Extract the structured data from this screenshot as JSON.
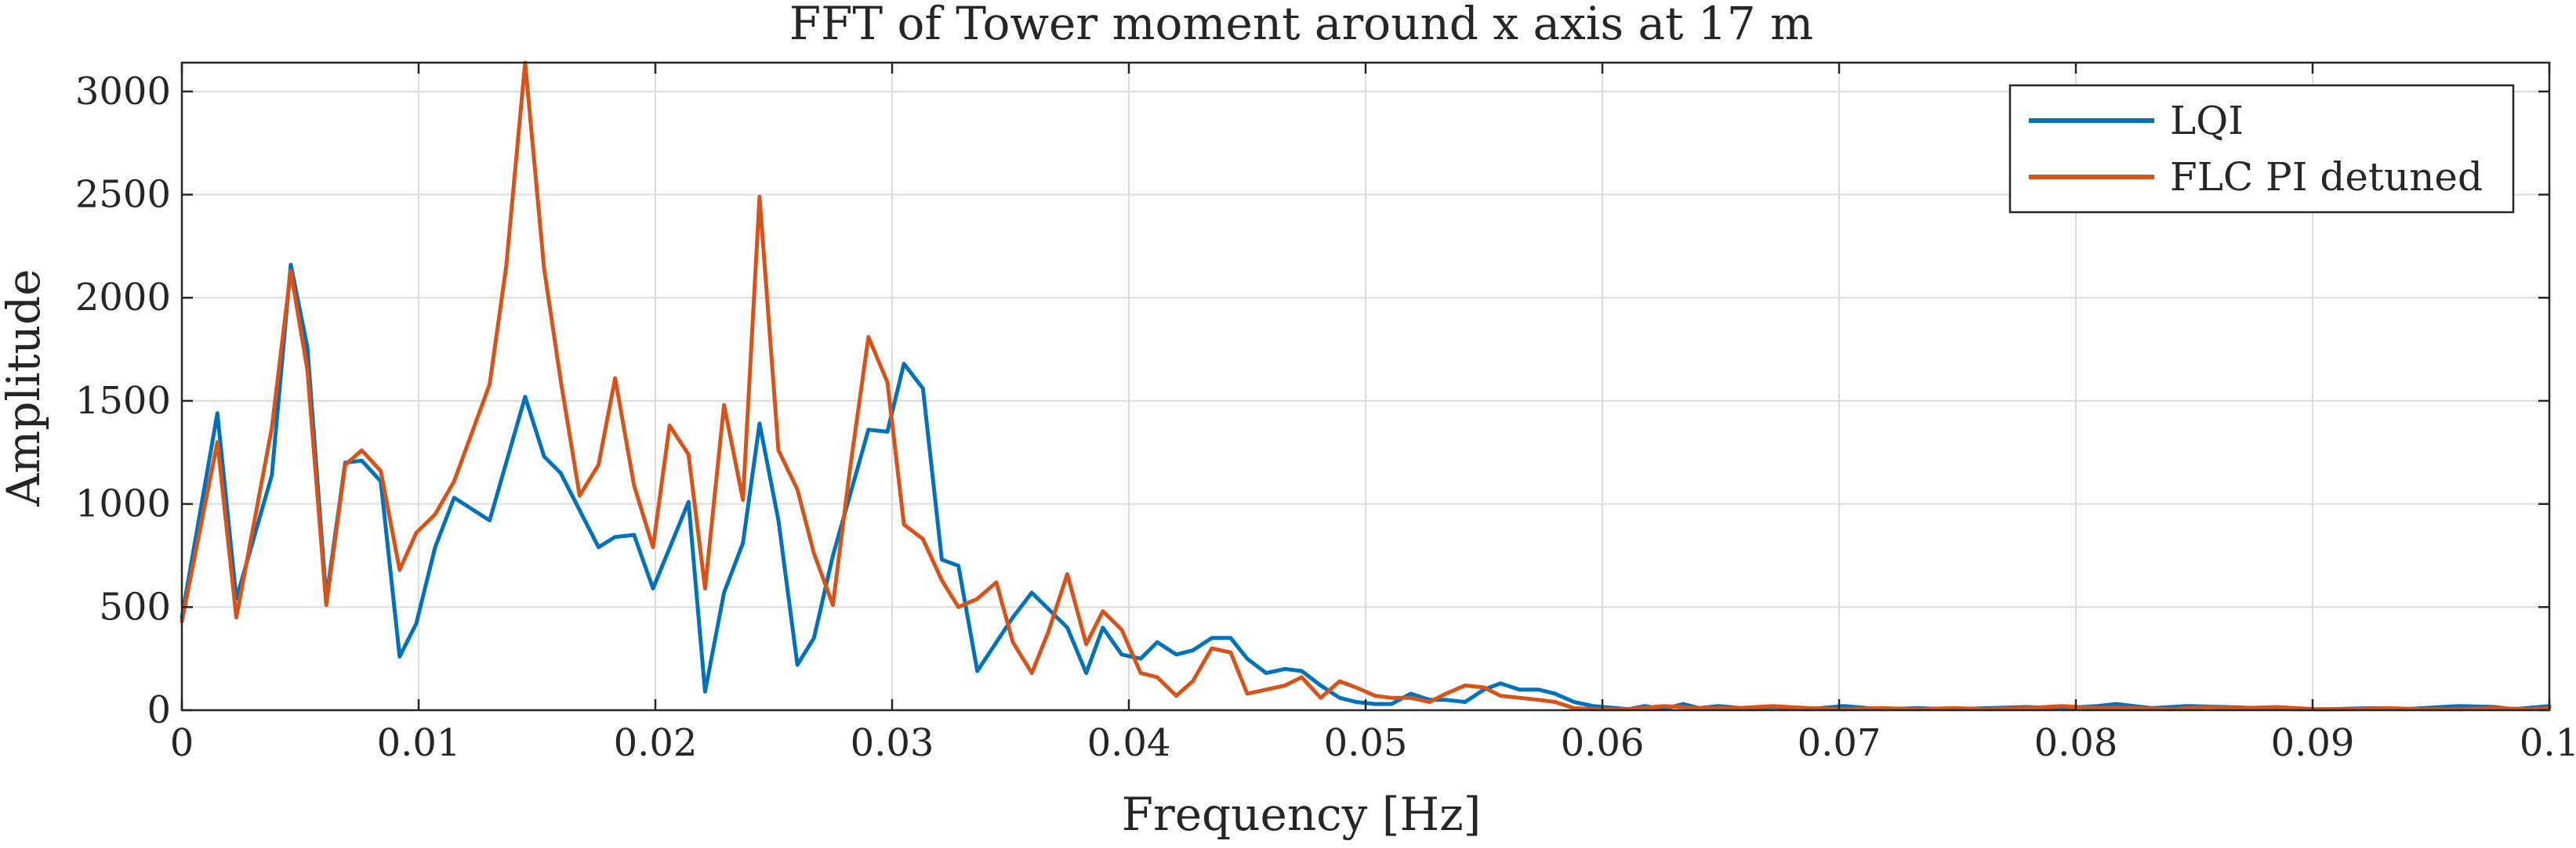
{
  "chart_data": {
    "type": "line",
    "title": "FFT of Tower moment around x axis at 17 m",
    "xlabel": "Frequency [Hz]",
    "ylabel": "Amplitude",
    "xlim": [
      0,
      0.1
    ],
    "ylim": [
      0,
      3140
    ],
    "xticks": [
      0,
      0.01,
      0.02,
      0.03,
      0.04,
      0.05,
      0.06,
      0.07,
      0.08,
      0.09,
      0.1
    ],
    "xtick_labels": [
      "0",
      "0.01",
      "0.02",
      "0.03",
      "0.04",
      "0.05",
      "0.06",
      "0.07",
      "0.08",
      "0.09",
      "0.1"
    ],
    "yticks": [
      0,
      500,
      1000,
      1500,
      2000,
      2500,
      3000
    ],
    "ytick_labels": [
      "0",
      "500",
      "1000",
      "1500",
      "2000",
      "2500",
      "3000"
    ],
    "grid": true,
    "legend_position": "top-right",
    "colors": {
      "LQI": "#0072BD",
      "FLC PI detuned": "#D95319"
    },
    "series": [
      {
        "name": "LQI",
        "color": "#0072BD",
        "x": [
          0,
          0.0015,
          0.0023,
          0.0038,
          0.0046,
          0.0053,
          0.0061,
          0.0069,
          0.0076,
          0.0084,
          0.0092,
          0.0099,
          0.0107,
          0.0115,
          0.013,
          0.0145,
          0.0153,
          0.016,
          0.0176,
          0.0183,
          0.0191,
          0.0199,
          0.0214,
          0.0221,
          0.0229,
          0.0237,
          0.0244,
          0.0252,
          0.026,
          0.0267,
          0.0275,
          0.029,
          0.0298,
          0.0305,
          0.0313,
          0.0321,
          0.0328,
          0.0336,
          0.0351,
          0.0359,
          0.0374,
          0.0382,
          0.0389,
          0.0397,
          0.0405,
          0.0412,
          0.042,
          0.0427,
          0.0435,
          0.0443,
          0.045,
          0.0458,
          0.0466,
          0.0473,
          0.0481,
          0.0489,
          0.0496,
          0.0504,
          0.0511,
          0.0519,
          0.0527,
          0.0534,
          0.0542,
          0.055,
          0.0557,
          0.0565,
          0.0573,
          0.058,
          0.0588,
          0.0596,
          0.0611,
          0.0618,
          0.0626,
          0.0634,
          0.0641,
          0.0649,
          0.0664,
          0.0672,
          0.0687,
          0.0702,
          0.0718,
          0.0733,
          0.0748,
          0.0763,
          0.0779,
          0.0794,
          0.0809,
          0.0817,
          0.0832,
          0.0847,
          0.0863,
          0.0878,
          0.0893,
          0.0908,
          0.0924,
          0.0939,
          0.0954,
          0.0962,
          0.0977,
          0.0985,
          0.1
        ],
        "y": [
          450,
          1440,
          540,
          1140,
          2160,
          1760,
          540,
          1200,
          1210,
          1110,
          260,
          420,
          790,
          1030,
          920,
          1520,
          1230,
          1150,
          790,
          840,
          850,
          590,
          1010,
          90,
          570,
          810,
          1390,
          920,
          220,
          350,
          750,
          1360,
          1350,
          1680,
          1560,
          730,
          700,
          190,
          450,
          570,
          400,
          180,
          400,
          270,
          250,
          330,
          270,
          290,
          350,
          350,
          250,
          180,
          200,
          190,
          120,
          60,
          40,
          30,
          30,
          80,
          50,
          50,
          40,
          100,
          130,
          100,
          100,
          80,
          40,
          20,
          5,
          20,
          5,
          30,
          10,
          20,
          5,
          15,
          5,
          20,
          5,
          10,
          5,
          10,
          15,
          10,
          20,
          30,
          10,
          20,
          15,
          10,
          5,
          5,
          10,
          5,
          15,
          20,
          15,
          5,
          20
        ]
      },
      {
        "name": "FLC PI detuned",
        "color": "#D95319",
        "x": [
          0,
          0.0015,
          0.0023,
          0.0038,
          0.0046,
          0.0053,
          0.0061,
          0.0069,
          0.0076,
          0.0084,
          0.0092,
          0.0099,
          0.0107,
          0.0115,
          0.013,
          0.0137,
          0.0145,
          0.0153,
          0.016,
          0.0168,
          0.0176,
          0.0183,
          0.0191,
          0.0199,
          0.0206,
          0.0214,
          0.0221,
          0.0229,
          0.0237,
          0.0244,
          0.0252,
          0.026,
          0.0267,
          0.0275,
          0.0282,
          0.029,
          0.0298,
          0.0305,
          0.0313,
          0.0321,
          0.0328,
          0.0336,
          0.0344,
          0.0351,
          0.0359,
          0.0366,
          0.0374,
          0.0382,
          0.0389,
          0.0397,
          0.0405,
          0.0412,
          0.042,
          0.0427,
          0.0435,
          0.0443,
          0.045,
          0.0458,
          0.0466,
          0.0473,
          0.0481,
          0.0489,
          0.0496,
          0.0504,
          0.0511,
          0.0519,
          0.0527,
          0.0534,
          0.0542,
          0.055,
          0.0557,
          0.0565,
          0.0573,
          0.058,
          0.0588,
          0.0596,
          0.0611,
          0.0626,
          0.0641,
          0.0657,
          0.0672,
          0.0687,
          0.0702,
          0.0718,
          0.0733,
          0.0748,
          0.0763,
          0.0779,
          0.0794,
          0.0809,
          0.0824,
          0.084,
          0.0855,
          0.087,
          0.0885,
          0.0901,
          0.0916,
          0.0931,
          0.0947,
          0.0962,
          0.0977,
          0.0992,
          0.1
        ],
        "y": [
          430,
          1300,
          450,
          1370,
          2130,
          1650,
          510,
          1190,
          1260,
          1160,
          680,
          860,
          950,
          1110,
          1580,
          2150,
          3140,
          2140,
          1600,
          1040,
          1190,
          1610,
          1090,
          790,
          1380,
          1240,
          590,
          1480,
          1020,
          2490,
          1260,
          1070,
          760,
          510,
          1150,
          1810,
          1590,
          900,
          830,
          630,
          500,
          540,
          620,
          330,
          180,
          380,
          660,
          320,
          480,
          390,
          180,
          160,
          70,
          140,
          300,
          280,
          80,
          100,
          120,
          160,
          60,
          140,
          110,
          70,
          60,
          60,
          40,
          80,
          120,
          110,
          70,
          60,
          50,
          40,
          10,
          5,
          5,
          20,
          10,
          10,
          20,
          10,
          5,
          10,
          5,
          10,
          5,
          10,
          20,
          10,
          10,
          5,
          15,
          10,
          15,
          5,
          5,
          10,
          5,
          5,
          10,
          5,
          10
        ]
      }
    ]
  }
}
